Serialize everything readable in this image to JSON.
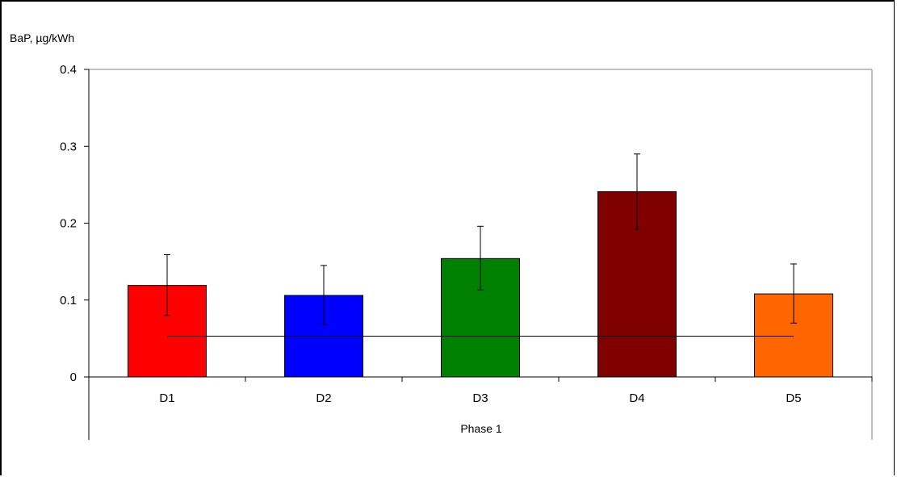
{
  "chart_data": {
    "type": "bar",
    "title": "",
    "ylabel": "BaP, µg/kWh",
    "xlabel": "Phase 1",
    "ylim": [
      0,
      0.4
    ],
    "yticks": [
      0,
      0.1,
      0.2,
      0.3,
      0.4
    ],
    "ytick_labels": [
      "0",
      "0.1",
      "0.2",
      "0.3",
      "0.4"
    ],
    "categories": [
      "D1",
      "D2",
      "D3",
      "D4",
      "D5"
    ],
    "values": [
      0.119,
      0.106,
      0.154,
      0.241,
      0.108
    ],
    "error_low": [
      0.08,
      0.068,
      0.113,
      0.192,
      0.07
    ],
    "error_high": [
      0.159,
      0.145,
      0.196,
      0.29,
      0.147
    ],
    "reference_line": 0.053,
    "colors": [
      "#ff0000",
      "#0000ff",
      "#008000",
      "#800000",
      "#ff6600"
    ],
    "grid": false
  }
}
